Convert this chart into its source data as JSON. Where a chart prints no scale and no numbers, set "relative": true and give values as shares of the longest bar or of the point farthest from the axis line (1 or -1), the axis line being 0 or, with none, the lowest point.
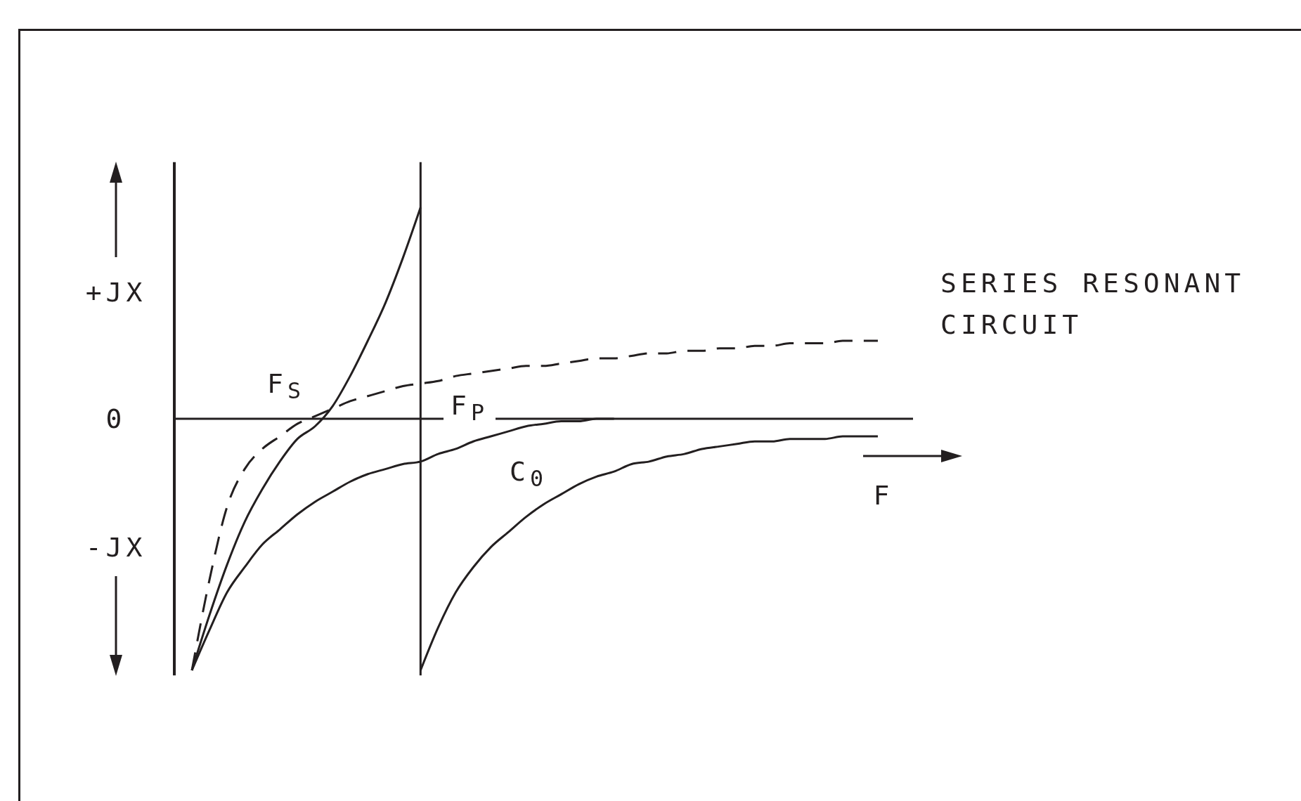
{
  "chart_data": {
    "type": "line",
    "relative": true,
    "xlabel": "F",
    "marker": "none",
    "categories": [
      null,
      null,
      null,
      null,
      null,
      null,
      null,
      null,
      null,
      null,
      null,
      null,
      null,
      null,
      null,
      null,
      null,
      null,
      null,
      null,
      null,
      null,
      null,
      null,
      null,
      null,
      null,
      null,
      null,
      null,
      null,
      null,
      null,
      null,
      null,
      null,
      null,
      null,
      null,
      null,
      null,
      null,
      null
    ],
    "annotations": [
      "+JX",
      "0",
      "-JX",
      "F$_{S}$",
      "F$_{P}$"
    ],
    "series": [
      {
        "color": "#231f20",
        "line_style": "solid",
        "values": [
          null,
          -1,
          -0.78,
          -0.58,
          -0.41,
          -0.28,
          -0.17,
          -0.08,
          -0.03,
          0.05,
          0.17,
          0.31,
          0.46,
          0.64,
          0.84,
          null,
          null,
          null,
          null,
          null,
          null,
          null,
          null,
          null,
          null,
          null,
          null,
          null,
          null,
          null,
          null,
          null,
          null,
          null,
          null,
          null,
          null,
          null,
          null,
          null,
          null,
          null,
          null
        ]
      },
      {
        "color": "#231f20",
        "line_style": "solid",
        "values": [
          null,
          null,
          null,
          null,
          null,
          null,
          null,
          null,
          null,
          null,
          null,
          null,
          null,
          null,
          -1,
          -0.83,
          -0.69,
          -0.59,
          -0.51,
          -0.45,
          -0.39,
          -0.34,
          -0.3,
          -0.26,
          -0.23,
          -0.21,
          -0.18,
          -0.17,
          -0.15,
          -0.14,
          -0.12,
          -0.11,
          -0.1,
          -0.09,
          -0.09,
          -0.08,
          -0.08,
          -0.08,
          -0.07,
          -0.07,
          -0.07,
          null,
          null
        ]
      },
      {
        "name": "SERIES RESONANT CIRCUIT",
        "color": "#231f20",
        "line_style": "dashed",
        "values": [
          null,
          -1,
          -0.64,
          -0.35,
          -0.2,
          -0.12,
          -0.07,
          -0.02,
          0.01,
          0.04,
          0.07,
          0.09,
          0.11,
          0.13,
          0.14,
          0.15,
          0.17,
          0.18,
          0.19,
          0.2,
          0.21,
          0.21,
          0.22,
          0.23,
          0.24,
          0.24,
          0.25,
          0.26,
          0.26,
          0.27,
          0.27,
          0.28,
          0.28,
          0.29,
          0.29,
          0.3,
          0.3,
          0.3,
          0.31,
          0.31,
          0.31,
          null,
          null
        ]
      },
      {
        "name": "C$_{0}$",
        "color": "#231f20",
        "line_style": "solid",
        "values": [
          null,
          -1,
          -0.84,
          -0.69,
          -0.59,
          -0.5,
          -0.44,
          -0.38,
          -0.33,
          -0.29,
          -0.25,
          -0.22,
          -0.2,
          -0.18,
          -0.17,
          -0.14,
          -0.12,
          -0.09,
          -0.07,
          -0.05,
          -0.03,
          -0.02,
          -0.01,
          -0.01,
          0,
          0,
          null,
          null,
          null,
          null,
          null,
          null,
          null,
          null,
          null,
          null,
          null,
          null,
          null,
          null,
          null,
          null,
          null
        ]
      }
    ]
  }
}
